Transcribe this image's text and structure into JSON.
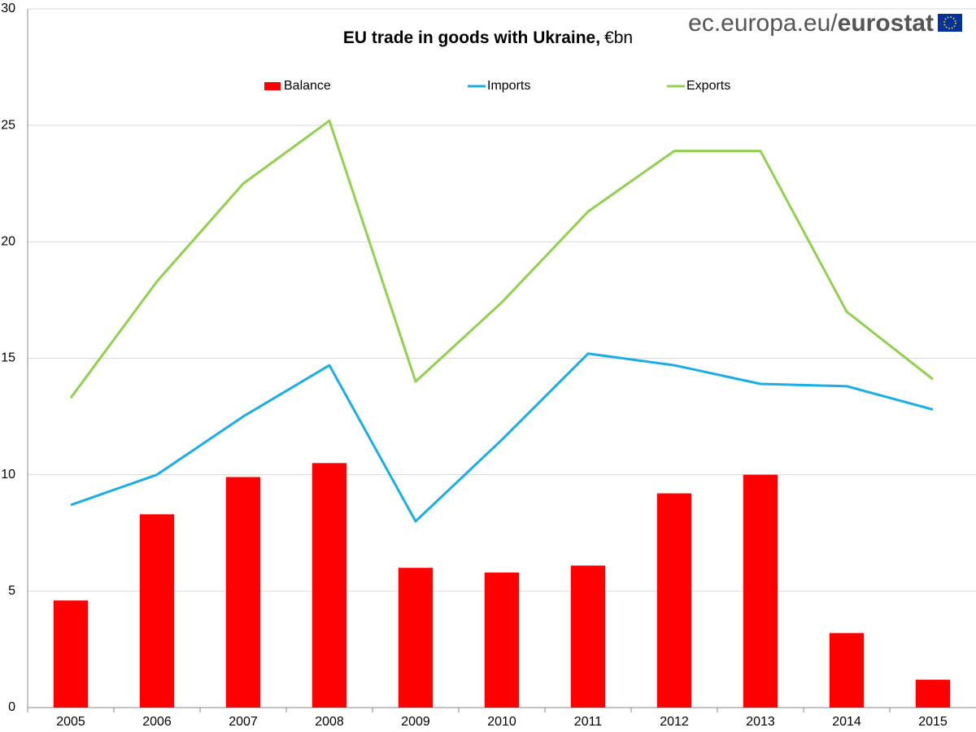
{
  "chart_data": {
    "type": "combo",
    "title": "EU trade in goods with Ukraine,",
    "title_unit": "€bn",
    "logo_prefix": "ec.europa.eu/",
    "logo_brand": "eurostat",
    "categories": [
      "2005",
      "2006",
      "2007",
      "2008",
      "2009",
      "2010",
      "2011",
      "2012",
      "2013",
      "2014",
      "2015"
    ],
    "series": [
      {
        "name": "Balance",
        "type": "bar",
        "color": "#ff0000",
        "values": [
          4.6,
          8.3,
          9.9,
          10.5,
          6.0,
          5.8,
          6.1,
          9.2,
          10.0,
          3.2,
          1.2
        ]
      },
      {
        "name": "Imports",
        "type": "line",
        "color": "#1aaee5",
        "values": [
          8.7,
          10.0,
          12.5,
          14.7,
          8.0,
          11.5,
          15.2,
          14.7,
          13.9,
          13.8,
          12.8
        ]
      },
      {
        "name": "Exports",
        "type": "line",
        "color": "#92d050",
        "values": [
          13.3,
          18.3,
          22.5,
          25.2,
          14.0,
          17.4,
          21.3,
          23.9,
          23.9,
          17.0,
          14.1
        ]
      }
    ],
    "ylim": [
      0,
      30
    ],
    "yticks": [
      0,
      5,
      10,
      15,
      20,
      25,
      30
    ],
    "grid": true,
    "legend": "top"
  }
}
